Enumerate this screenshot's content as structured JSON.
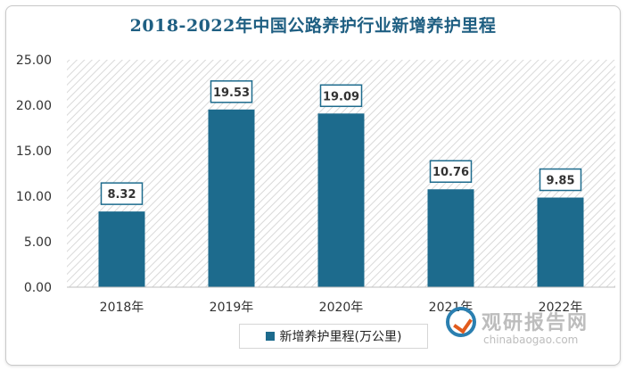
{
  "chart_data": {
    "type": "bar",
    "title": "2018-2022年中国公路养护行业新增养护里程",
    "categories": [
      "2018年",
      "2019年",
      "2020年",
      "2021年",
      "2022年"
    ],
    "series": [
      {
        "name": "新增养护里程(万公里)",
        "values": [
          8.32,
          19.53,
          19.09,
          10.76,
          9.85
        ]
      }
    ],
    "data_labels": [
      "8.32",
      "19.53",
      "19.09",
      "10.76",
      "9.85"
    ],
    "y_ticks": [
      "0.00",
      "5.00",
      "10.00",
      "15.00",
      "20.00",
      "25.00"
    ],
    "ylim": [
      0,
      25
    ],
    "grid": false,
    "legend_position": "bottom",
    "colors": {
      "bar": "#1d6b8d",
      "label_border": "#1d6b8d",
      "title": "#1f5f82"
    }
  },
  "watermark": {
    "name_cn": "观研报告网",
    "url": "chinabaogao.com"
  }
}
